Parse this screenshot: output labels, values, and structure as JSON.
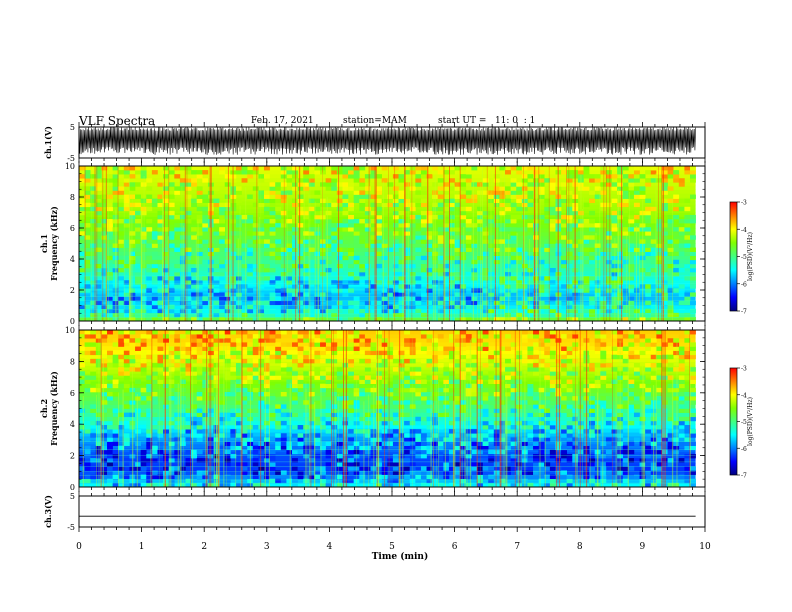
{
  "header": {
    "title": "VLF Spectra",
    "date": "Feb. 17, 2021",
    "station": "station=MAM",
    "start": "start UT =   11: 0  : 1"
  },
  "colors": {
    "colormap": [
      "#00007f",
      "#0000ff",
      "#0080ff",
      "#00ffff",
      "#40ff80",
      "#80ff00",
      "#ffff00",
      "#ff8000",
      "#ff0000"
    ],
    "axis": "#000000"
  },
  "chart_data": [
    {
      "type": "line",
      "name": "ch1-waveform",
      "ylabel": "ch.1(V)",
      "ylim": [
        -5,
        5
      ],
      "yticks": [
        5,
        -5
      ],
      "x_range": [
        0,
        9.85
      ],
      "description_of_trace": "dense oscillating signal filling roughly -4 to +5 V",
      "amplitude_range": [
        -4,
        5
      ]
    },
    {
      "type": "heatmap",
      "name": "ch1-spectrogram",
      "ylabel_line1": "ch.1",
      "ylabel_line2": "Frequency (kHz)",
      "ylim": [
        0,
        10
      ],
      "yticks": [
        0,
        2,
        4,
        6,
        8,
        10
      ],
      "x_range": [
        0,
        9.85
      ],
      "colorbar": {
        "label": "log(PSD)(V²/Hz)",
        "range": [
          -7,
          -3
        ],
        "ticks": [
          -3,
          -4,
          -5,
          -6,
          -7
        ]
      },
      "frequency_profile_logpsd": [
        {
          "freq": 0,
          "value": -4.5
        },
        {
          "freq": 0.5,
          "value": -5.4
        },
        {
          "freq": 1.5,
          "value": -5.8
        },
        {
          "freq": 3,
          "value": -5.3
        },
        {
          "freq": 5,
          "value": -4.8
        },
        {
          "freq": 7,
          "value": -4.4
        },
        {
          "freq": 9,
          "value": -4.2
        },
        {
          "freq": 10,
          "value": -4.1
        }
      ],
      "low_band_shift_after_min": 6.5
    },
    {
      "type": "heatmap",
      "name": "ch2-spectrogram",
      "ylabel_line1": "ch.2",
      "ylabel_line2": "Frequency (kHz)",
      "ylim": [
        0,
        10
      ],
      "yticks": [
        0,
        2,
        4,
        6,
        8,
        10
      ],
      "x_range": [
        0,
        9.85
      ],
      "colorbar": {
        "label": "log(PSD)(V²/Hz)",
        "range": [
          -7,
          -3
        ],
        "ticks": [
          -3,
          -4,
          -5,
          -6,
          -7
        ]
      },
      "frequency_profile_logpsd": [
        {
          "freq": 0,
          "value": -5.4
        },
        {
          "freq": 1,
          "value": -6.3
        },
        {
          "freq": 2,
          "value": -6.2
        },
        {
          "freq": 3,
          "value": -5.9
        },
        {
          "freq": 5,
          "value": -5.0
        },
        {
          "freq": 7,
          "value": -4.4
        },
        {
          "freq": 9,
          "value": -3.9
        },
        {
          "freq": 10,
          "value": -3.8
        }
      ]
    },
    {
      "type": "line",
      "name": "ch3-waveform",
      "ylabel": "ch.3(V)",
      "ylim": [
        -5,
        5
      ],
      "yticks": [
        5,
        -5
      ],
      "x_range": [
        0,
        9.85
      ],
      "constant_value": -1.5
    }
  ],
  "xaxis": {
    "label": "Time (min)",
    "range": [
      0,
      10
    ],
    "ticks": [
      "0",
      "1",
      "2",
      "3",
      "4",
      "5",
      "6",
      "7",
      "8",
      "9",
      "10"
    ]
  }
}
